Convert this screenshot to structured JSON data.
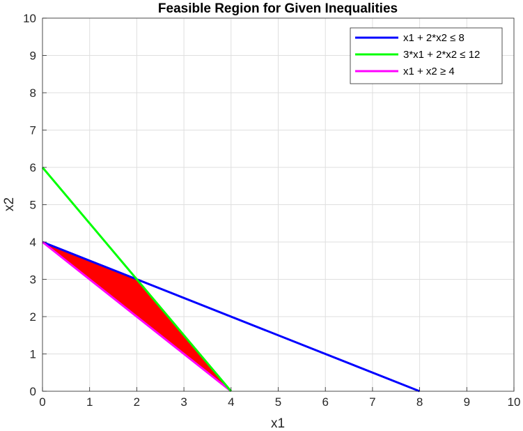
{
  "chart_data": {
    "type": "line",
    "title": "Feasible Region for Given Inequalities",
    "xlabel": "x1",
    "ylabel": "x2",
    "xlim": [
      0,
      10
    ],
    "ylim": [
      0,
      10
    ],
    "xticks": [
      0,
      1,
      2,
      3,
      4,
      5,
      6,
      7,
      8,
      9,
      10
    ],
    "yticks": [
      0,
      1,
      2,
      3,
      4,
      5,
      6,
      7,
      8,
      9,
      10
    ],
    "xtick_labels": [
      "0",
      "1",
      "2",
      "3",
      "4",
      "5",
      "6",
      "7",
      "8",
      "9",
      "10"
    ],
    "ytick_labels": [
      "0",
      "1",
      "2",
      "3",
      "4",
      "5",
      "6",
      "7",
      "8",
      "9",
      "10"
    ],
    "grid": true,
    "legend_position": "top-right",
    "series": [
      {
        "name": "x1 + 2*x2 ≤ 8",
        "color": "#0000ff",
        "x": [
          0,
          8
        ],
        "y": [
          4,
          0
        ]
      },
      {
        "name": "3*x1 + 2*x2 ≤ 12",
        "color": "#00ff00",
        "x": [
          0,
          4
        ],
        "y": [
          6,
          0
        ]
      },
      {
        "name": "x1 + x2 ≥ 4",
        "color": "#ff00ff",
        "x": [
          0,
          4
        ],
        "y": [
          4,
          0
        ]
      }
    ],
    "feasible_region": {
      "color": "#ff0000",
      "x": [
        0,
        2,
        4
      ],
      "y": [
        4,
        3,
        0
      ]
    }
  }
}
